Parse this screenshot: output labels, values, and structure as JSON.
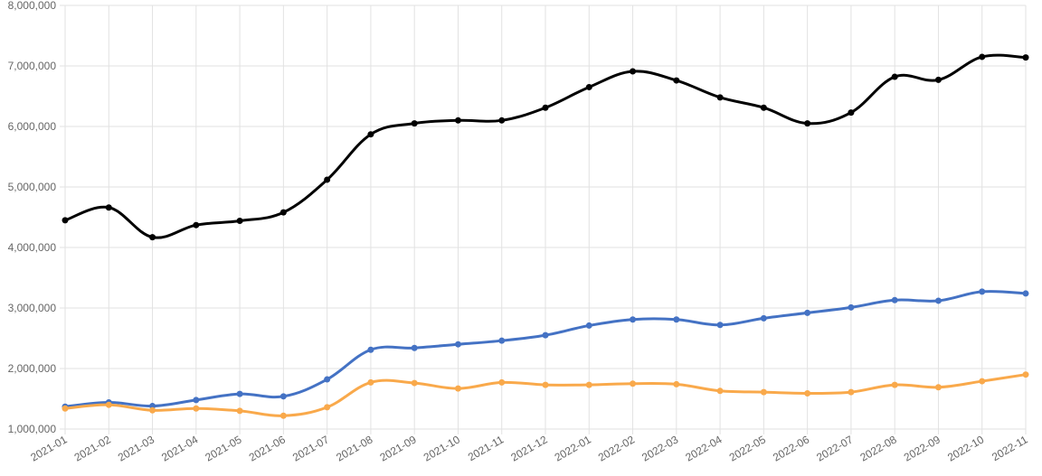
{
  "chart_data": {
    "type": "line",
    "title": "",
    "xlabel": "",
    "ylabel": "",
    "ylim": [
      1000000,
      8000000
    ],
    "yticks": [
      1000000,
      2000000,
      3000000,
      4000000,
      5000000,
      6000000,
      7000000,
      8000000
    ],
    "ytick_labels": [
      "1,000,000",
      "2,000,000",
      "3,000,000",
      "4,000,000",
      "5,000,000",
      "6,000,000",
      "7,000,000",
      "8,000,000"
    ],
    "grid": true,
    "categories": [
      "2021-01",
      "2021-02",
      "2021-03",
      "2021-04",
      "2021-05",
      "2021-06",
      "2021-07",
      "2021-08",
      "2021-09",
      "2021-10",
      "2021-11",
      "2021-12",
      "2022-01",
      "2022-02",
      "2022-03",
      "2022-04",
      "2022-05",
      "2022-06",
      "2022-07",
      "2022-08",
      "2022-09",
      "2022-10",
      "2022-11"
    ],
    "series": [
      {
        "color": "#000000",
        "values": [
          4450000,
          4660000,
          4170000,
          4370000,
          4440000,
          4580000,
          5120000,
          5870000,
          6050000,
          6100000,
          6100000,
          6310000,
          6650000,
          6910000,
          6760000,
          6480000,
          6310000,
          6050000,
          6230000,
          6820000,
          6770000,
          7150000,
          7140000
        ]
      },
      {
        "color": "#4472c4",
        "values": [
          1370000,
          1440000,
          1380000,
          1480000,
          1580000,
          1540000,
          1820000,
          2310000,
          2340000,
          2400000,
          2460000,
          2550000,
          2710000,
          2810000,
          2810000,
          2720000,
          2830000,
          2920000,
          3010000,
          3130000,
          3120000,
          3270000,
          3240000
        ]
      },
      {
        "color": "#f9a94b",
        "values": [
          1340000,
          1400000,
          1310000,
          1340000,
          1300000,
          1220000,
          1360000,
          1770000,
          1760000,
          1670000,
          1770000,
          1730000,
          1730000,
          1750000,
          1740000,
          1630000,
          1610000,
          1590000,
          1610000,
          1730000,
          1690000,
          1790000,
          1900000
        ]
      }
    ]
  }
}
